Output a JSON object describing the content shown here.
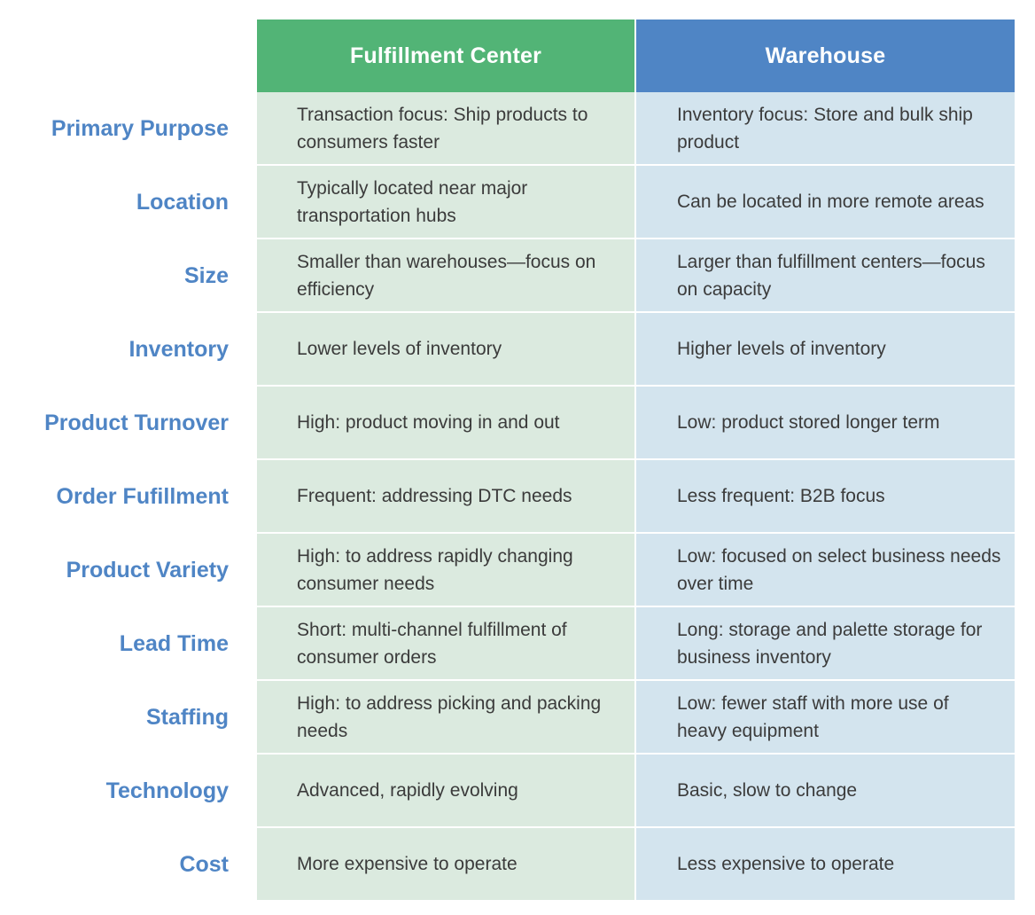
{
  "header": {
    "fulfillment_center": "Fulfillment Center",
    "warehouse": "Warehouse"
  },
  "rows": [
    {
      "label": "Primary Purpose",
      "fulfillment_center": "Transaction focus: Ship products to consumers faster",
      "warehouse": "Inventory focus: Store and bulk ship product"
    },
    {
      "label": "Location",
      "fulfillment_center": "Typically located near major transportation hubs",
      "warehouse": "Can be located in more remote areas"
    },
    {
      "label": "Size",
      "fulfillment_center": "Smaller than warehouses—focus on efficiency",
      "warehouse": "Larger than fulfillment centers—focus on capacity"
    },
    {
      "label": "Inventory",
      "fulfillment_center": "Lower levels of inventory",
      "warehouse": "Higher levels of inventory"
    },
    {
      "label": "Product Turnover",
      "fulfillment_center": "High: product moving in and out",
      "warehouse": "Low: product stored longer term"
    },
    {
      "label": "Order Fufillment",
      "fulfillment_center": "Frequent: addressing DTC needs",
      "warehouse": "Less frequent: B2B focus"
    },
    {
      "label": "Product Variety",
      "fulfillment_center": "High: to address rapidly changing consumer needs",
      "warehouse": "Low: focused on select business needs over time"
    },
    {
      "label": "Lead Time",
      "fulfillment_center": "Short: multi-channel fulfillment of consumer orders",
      "warehouse": "Long: storage and palette storage for business inventory"
    },
    {
      "label": "Staffing",
      "fulfillment_center": "High: to address picking and packing needs",
      "warehouse": "Low: fewer staff with more use of heavy equipment"
    },
    {
      "label": "Technology",
      "fulfillment_center": "Advanced, rapidly evolving",
      "warehouse": "Basic, slow to change"
    },
    {
      "label": "Cost",
      "fulfillment_center": "More expensive to operate",
      "warehouse": "Less expensive to operate"
    }
  ],
  "colors": {
    "fulfillment_header": "#52b476",
    "warehouse_header": "#4f85c5",
    "fulfillment_cell": "#dbeadf",
    "warehouse_cell": "#d3e4ee",
    "row_label": "#4f85c5",
    "cell_text": "#3b3b3b"
  }
}
